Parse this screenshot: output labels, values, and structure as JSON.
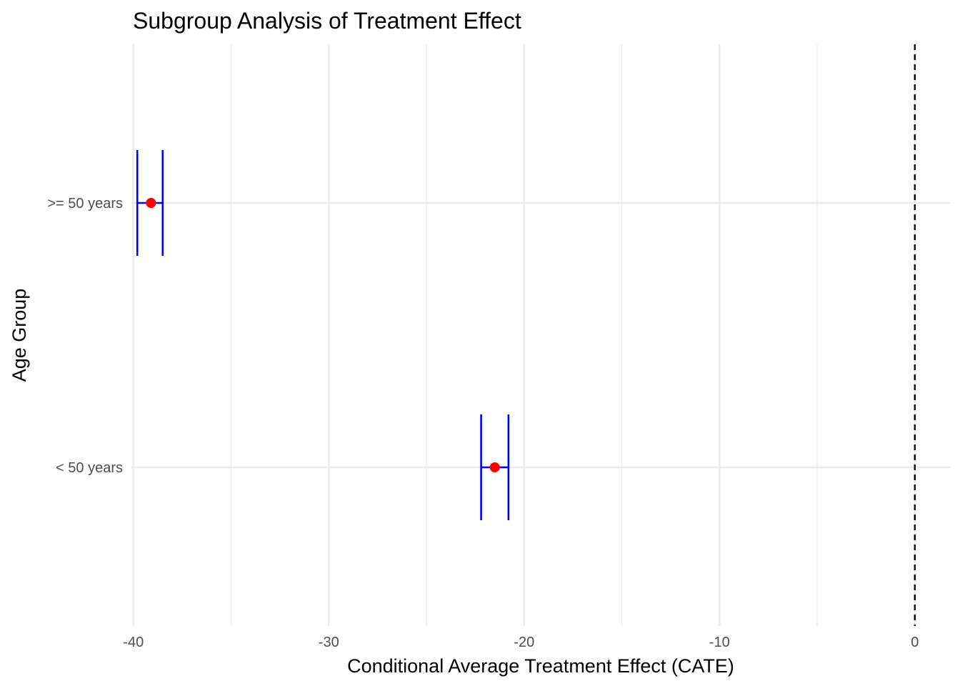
{
  "chart_data": {
    "type": "errorbar",
    "title": "Subgroup Analysis of Treatment Effect",
    "xlabel": "Conditional Average Treatment Effect (CATE)",
    "ylabel": "Age Group",
    "xlim": [
      -40.1,
      1.8
    ],
    "x_ticks": [
      -40,
      -30,
      -20,
      -10,
      0
    ],
    "x_tick_labels": [
      "-40",
      "-30",
      "-20",
      "-10",
      "0"
    ],
    "categories": [
      ">= 50 years",
      "< 50 years"
    ],
    "points": [
      {
        "group": ">= 50 years",
        "estimate": -39.1,
        "lower": -39.8,
        "upper": -38.5
      },
      {
        "group": "< 50 years",
        "estimate": -21.5,
        "lower": -22.2,
        "upper": -20.8
      }
    ],
    "reference_line": {
      "x": 0,
      "style": "dashed"
    },
    "grid": true,
    "legend": "none",
    "colors": {
      "point": "#ff0000",
      "errorbar": "#0000ff",
      "grid": "#ebebeb",
      "reference": "#000000"
    }
  }
}
